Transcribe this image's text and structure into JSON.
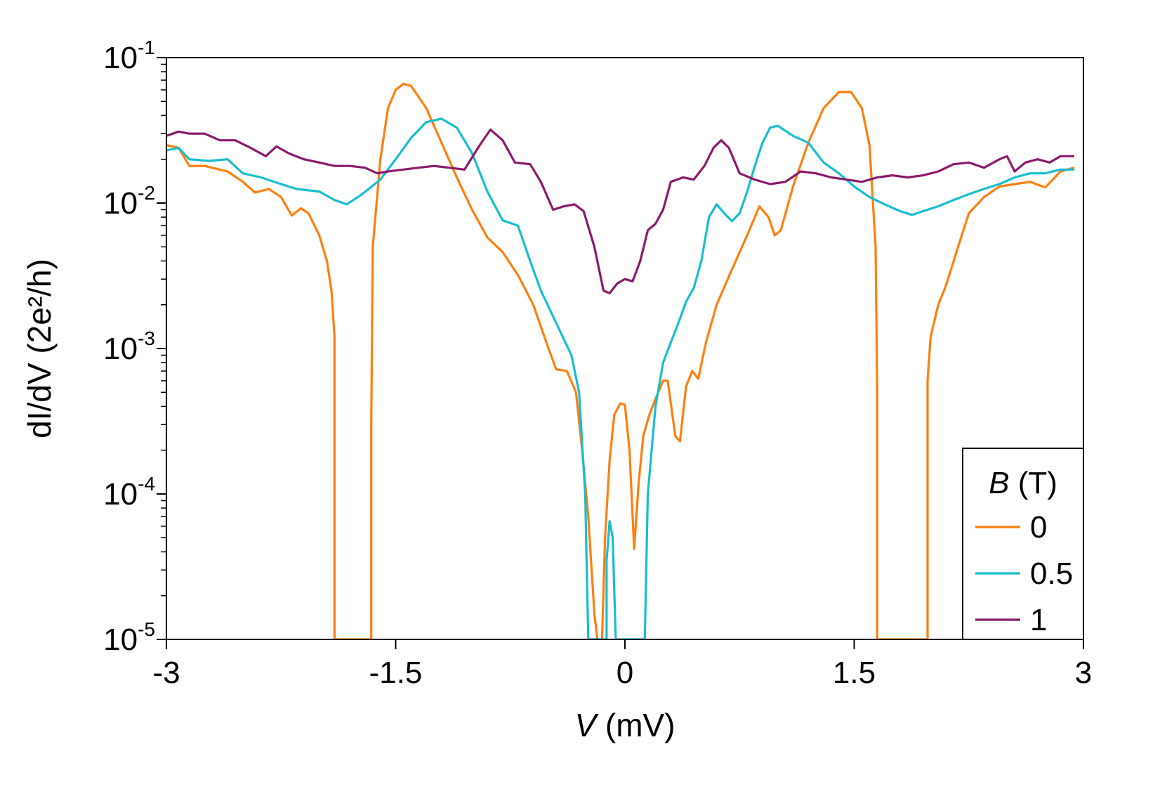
{
  "chart_data": {
    "type": "line",
    "xlabel_italic": "V",
    "xlabel_rest": " (mV)",
    "ylabel": "dI/dV (2e²/h)",
    "xlim": [
      -3,
      3
    ],
    "ylim": [
      1e-05,
      0.1
    ],
    "y_scale": "log",
    "x_ticks": [
      -3,
      -1.5,
      0,
      1.5,
      3
    ],
    "x_tick_labels": [
      "-3",
      "-1.5",
      "0",
      "1.5",
      "3"
    ],
    "y_ticks": [
      1e-05,
      0.0001,
      0.001,
      0.01,
      0.1
    ],
    "y_tick_labels": [
      {
        "base": "10",
        "exp": "-5"
      },
      {
        "base": "10",
        "exp": "-4"
      },
      {
        "base": "10",
        "exp": "-3"
      },
      {
        "base": "10",
        "exp": "-2"
      },
      {
        "base": "10",
        "exp": "-1"
      }
    ],
    "legend": {
      "title_italic": "B",
      "title_rest": " (T)",
      "placement": "lower-right"
    },
    "series": [
      {
        "name": "0",
        "color": "#ff7f0e",
        "points": [
          [
            -3.0,
            0.025
          ],
          [
            -2.92,
            0.024
          ],
          [
            -2.85,
            0.018
          ],
          [
            -2.75,
            0.018
          ],
          [
            -2.6,
            0.0165
          ],
          [
            -2.5,
            0.014
          ],
          [
            -2.42,
            0.0118
          ],
          [
            -2.33,
            0.0125
          ],
          [
            -2.25,
            0.011
          ],
          [
            -2.18,
            0.0082
          ],
          [
            -2.12,
            0.0092
          ],
          [
            -2.07,
            0.0085
          ],
          [
            -2.0,
            0.006
          ],
          [
            -1.95,
            0.004
          ],
          [
            -1.92,
            0.0025
          ],
          [
            -1.9,
            0.0012
          ],
          [
            -1.9,
            1e-05
          ],
          [
            -1.66,
            1e-05
          ],
          [
            -1.66,
            0.0003
          ],
          [
            -1.65,
            0.005
          ],
          [
            -1.6,
            0.02
          ],
          [
            -1.55,
            0.045
          ],
          [
            -1.5,
            0.06
          ],
          [
            -1.45,
            0.066
          ],
          [
            -1.4,
            0.064
          ],
          [
            -1.3,
            0.045
          ],
          [
            -1.2,
            0.026
          ],
          [
            -1.1,
            0.015
          ],
          [
            -1.0,
            0.009
          ],
          [
            -0.9,
            0.0058
          ],
          [
            -0.8,
            0.0046
          ],
          [
            -0.7,
            0.0032
          ],
          [
            -0.6,
            0.002
          ],
          [
            -0.5,
            0.001
          ],
          [
            -0.45,
            0.00072
          ],
          [
            -0.38,
            0.0007
          ],
          [
            -0.32,
            0.0005
          ],
          [
            -0.28,
            0.0002
          ],
          [
            -0.24,
            7e-05
          ],
          [
            -0.2,
            1.5e-05
          ],
          [
            -0.18,
            1e-05
          ],
          [
            -0.15,
            1e-05
          ],
          [
            -0.13,
            5e-05
          ],
          [
            -0.1,
            0.00017
          ],
          [
            -0.07,
            0.00035
          ],
          [
            -0.03,
            0.00042
          ],
          [
            0.0,
            0.00041
          ],
          [
            0.03,
            0.0002
          ],
          [
            0.06,
            4.2e-05
          ],
          [
            0.09,
            0.00012
          ],
          [
            0.12,
            0.00025
          ],
          [
            0.16,
            0.00035
          ],
          [
            0.2,
            0.00045
          ],
          [
            0.25,
            0.0006
          ],
          [
            0.28,
            0.0006
          ],
          [
            0.33,
            0.00025
          ],
          [
            0.36,
            0.00023
          ],
          [
            0.4,
            0.00055
          ],
          [
            0.44,
            0.0007
          ],
          [
            0.48,
            0.00062
          ],
          [
            0.53,
            0.0011
          ],
          [
            0.6,
            0.002
          ],
          [
            0.7,
            0.0035
          ],
          [
            0.8,
            0.006
          ],
          [
            0.88,
            0.0095
          ],
          [
            0.94,
            0.008
          ],
          [
            0.98,
            0.006
          ],
          [
            1.02,
            0.0065
          ],
          [
            1.1,
            0.013
          ],
          [
            1.2,
            0.026
          ],
          [
            1.3,
            0.045
          ],
          [
            1.4,
            0.058
          ],
          [
            1.48,
            0.058
          ],
          [
            1.55,
            0.045
          ],
          [
            1.6,
            0.025
          ],
          [
            1.64,
            0.005
          ],
          [
            1.65,
            0.0005
          ],
          [
            1.65,
            1e-05
          ],
          [
            1.98,
            1e-05
          ],
          [
            1.98,
            0.0006
          ],
          [
            2.0,
            0.0012
          ],
          [
            2.05,
            0.002
          ],
          [
            2.1,
            0.0027
          ],
          [
            2.18,
            0.005
          ],
          [
            2.25,
            0.0085
          ],
          [
            2.35,
            0.011
          ],
          [
            2.45,
            0.013
          ],
          [
            2.55,
            0.0135
          ],
          [
            2.65,
            0.014
          ],
          [
            2.75,
            0.0128
          ],
          [
            2.85,
            0.0165
          ],
          [
            2.94,
            0.0175
          ]
        ]
      },
      {
        "name": "0.5",
        "color": "#17becf",
        "points": [
          [
            -3.0,
            0.023
          ],
          [
            -2.92,
            0.024
          ],
          [
            -2.85,
            0.02
          ],
          [
            -2.72,
            0.0195
          ],
          [
            -2.6,
            0.02
          ],
          [
            -2.5,
            0.016
          ],
          [
            -2.38,
            0.015
          ],
          [
            -2.25,
            0.0135
          ],
          [
            -2.15,
            0.0125
          ],
          [
            -2.0,
            0.012
          ],
          [
            -1.9,
            0.0105
          ],
          [
            -1.82,
            0.0098
          ],
          [
            -1.72,
            0.0115
          ],
          [
            -1.6,
            0.0145
          ],
          [
            -1.5,
            0.02
          ],
          [
            -1.4,
            0.028
          ],
          [
            -1.3,
            0.036
          ],
          [
            -1.2,
            0.038
          ],
          [
            -1.1,
            0.033
          ],
          [
            -1.0,
            0.022
          ],
          [
            -0.9,
            0.012
          ],
          [
            -0.8,
            0.0076
          ],
          [
            -0.7,
            0.007
          ],
          [
            -0.62,
            0.004
          ],
          [
            -0.55,
            0.0025
          ],
          [
            -0.45,
            0.0015
          ],
          [
            -0.35,
            0.0009
          ],
          [
            -0.3,
            0.0005
          ],
          [
            -0.26,
            0.0001
          ],
          [
            -0.24,
            1e-05
          ],
          [
            -0.18,
            1e-05
          ],
          [
            -0.16,
            1e-05
          ],
          [
            -0.12,
            1e-05
          ],
          [
            -0.12,
            3.5e-05
          ],
          [
            -0.1,
            6.5e-05
          ],
          [
            -0.08,
            5e-05
          ],
          [
            -0.06,
            1e-05
          ],
          [
            0.13,
            1e-05
          ],
          [
            0.15,
            0.0001
          ],
          [
            0.2,
            0.0004
          ],
          [
            0.25,
            0.0008
          ],
          [
            0.3,
            0.0011
          ],
          [
            0.35,
            0.0015
          ],
          [
            0.4,
            0.0021
          ],
          [
            0.45,
            0.0026
          ],
          [
            0.5,
            0.004
          ],
          [
            0.55,
            0.008
          ],
          [
            0.6,
            0.0098
          ],
          [
            0.65,
            0.0085
          ],
          [
            0.7,
            0.0075
          ],
          [
            0.75,
            0.0085
          ],
          [
            0.8,
            0.012
          ],
          [
            0.85,
            0.018
          ],
          [
            0.9,
            0.026
          ],
          [
            0.95,
            0.033
          ],
          [
            1.0,
            0.034
          ],
          [
            1.1,
            0.029
          ],
          [
            1.2,
            0.026
          ],
          [
            1.3,
            0.019
          ],
          [
            1.4,
            0.016
          ],
          [
            1.5,
            0.013
          ],
          [
            1.6,
            0.011
          ],
          [
            1.7,
            0.0098
          ],
          [
            1.8,
            0.0088
          ],
          [
            1.88,
            0.0083
          ],
          [
            1.95,
            0.0088
          ],
          [
            2.05,
            0.0095
          ],
          [
            2.15,
            0.0105
          ],
          [
            2.25,
            0.0115
          ],
          [
            2.35,
            0.0125
          ],
          [
            2.45,
            0.0135
          ],
          [
            2.55,
            0.015
          ],
          [
            2.65,
            0.016
          ],
          [
            2.75,
            0.016
          ],
          [
            2.85,
            0.017
          ],
          [
            2.94,
            0.017
          ]
        ]
      },
      {
        "name": "1",
        "color": "#8b1a6b",
        "points": [
          [
            -3.0,
            0.029
          ],
          [
            -2.92,
            0.031
          ],
          [
            -2.85,
            0.03
          ],
          [
            -2.75,
            0.03
          ],
          [
            -2.65,
            0.027
          ],
          [
            -2.55,
            0.027
          ],
          [
            -2.45,
            0.024
          ],
          [
            -2.35,
            0.021
          ],
          [
            -2.28,
            0.0245
          ],
          [
            -2.2,
            0.022
          ],
          [
            -2.1,
            0.02
          ],
          [
            -2.0,
            0.019
          ],
          [
            -1.9,
            0.018
          ],
          [
            -1.8,
            0.018
          ],
          [
            -1.7,
            0.0175
          ],
          [
            -1.62,
            0.016
          ],
          [
            -1.55,
            0.0165
          ],
          [
            -1.45,
            0.017
          ],
          [
            -1.35,
            0.0175
          ],
          [
            -1.25,
            0.018
          ],
          [
            -1.15,
            0.0175
          ],
          [
            -1.05,
            0.017
          ],
          [
            -0.95,
            0.025
          ],
          [
            -0.88,
            0.032
          ],
          [
            -0.8,
            0.027
          ],
          [
            -0.72,
            0.019
          ],
          [
            -0.62,
            0.0185
          ],
          [
            -0.55,
            0.014
          ],
          [
            -0.47,
            0.009
          ],
          [
            -0.4,
            0.0095
          ],
          [
            -0.33,
            0.0098
          ],
          [
            -0.27,
            0.0088
          ],
          [
            -0.2,
            0.005
          ],
          [
            -0.14,
            0.0025
          ],
          [
            -0.1,
            0.0024
          ],
          [
            -0.05,
            0.0028
          ],
          [
            0.0,
            0.003
          ],
          [
            0.05,
            0.0029
          ],
          [
            0.1,
            0.004
          ],
          [
            0.15,
            0.0065
          ],
          [
            0.2,
            0.0072
          ],
          [
            0.25,
            0.009
          ],
          [
            0.3,
            0.014
          ],
          [
            0.38,
            0.015
          ],
          [
            0.45,
            0.0145
          ],
          [
            0.52,
            0.018
          ],
          [
            0.58,
            0.024
          ],
          [
            0.63,
            0.027
          ],
          [
            0.68,
            0.024
          ],
          [
            0.75,
            0.016
          ],
          [
            0.85,
            0.0145
          ],
          [
            0.95,
            0.0135
          ],
          [
            1.05,
            0.014
          ],
          [
            1.15,
            0.0165
          ],
          [
            1.25,
            0.016
          ],
          [
            1.35,
            0.015
          ],
          [
            1.45,
            0.0145
          ],
          [
            1.55,
            0.014
          ],
          [
            1.65,
            0.015
          ],
          [
            1.75,
            0.0155
          ],
          [
            1.85,
            0.015
          ],
          [
            1.95,
            0.0155
          ],
          [
            2.05,
            0.0165
          ],
          [
            2.15,
            0.0185
          ],
          [
            2.25,
            0.019
          ],
          [
            2.35,
            0.0175
          ],
          [
            2.45,
            0.02
          ],
          [
            2.5,
            0.021
          ],
          [
            2.55,
            0.0165
          ],
          [
            2.62,
            0.019
          ],
          [
            2.7,
            0.02
          ],
          [
            2.78,
            0.019
          ],
          [
            2.85,
            0.021
          ],
          [
            2.94,
            0.021
          ]
        ]
      }
    ]
  }
}
